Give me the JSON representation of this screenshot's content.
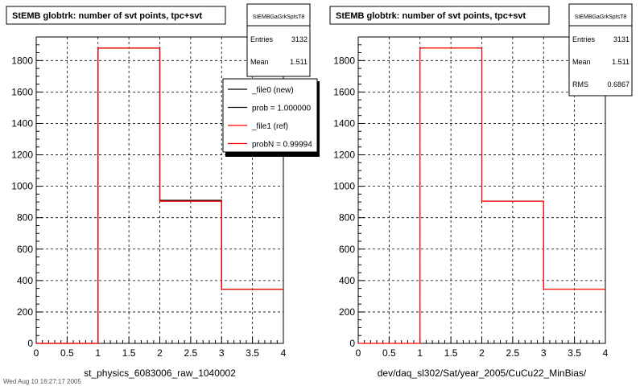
{
  "footer_text": "Wed Aug 10 16:27:17 2005",
  "chart_data": [
    {
      "type": "histogram",
      "title": "StEMB globtrk: number of svt points, tpc+svt",
      "xlabel": "st_physics_6083006_raw_1040002",
      "ylabel": "",
      "xlim": [
        0,
        4
      ],
      "ylim": [
        0,
        1950
      ],
      "grid": true,
      "x_ticks": [
        "0",
        "0.5",
        "1",
        "1.5",
        "2",
        "2.5",
        "3",
        "3.5",
        "4"
      ],
      "y_ticks": [
        "0",
        "200",
        "400",
        "600",
        "800",
        "1000",
        "1200",
        "1400",
        "1600",
        "1800"
      ],
      "bin_edges": [
        0,
        1,
        2,
        3,
        4
      ],
      "series": [
        {
          "name": "_file0 (new)",
          "color": "#000000",
          "values": [
            0,
            1880,
            910,
            345
          ]
        },
        {
          "name": "_file1 (ref)",
          "color": "#ff0000",
          "values": [
            0,
            1880,
            905,
            345
          ]
        }
      ],
      "stats": {
        "name": "StEMBGaGrkSptsT8",
        "rows": [
          {
            "label": "Entries",
            "value": "3132"
          },
          {
            "label": "Mean",
            "value": "1.511"
          }
        ]
      },
      "legend": {
        "position": "top-right",
        "entries": [
          {
            "label": "_file0 (new)",
            "color": "#000000"
          },
          {
            "label": "prob = 1.000000",
            "color": "#000000"
          },
          {
            "label": "_file1 (ref)",
            "color": "#ff0000"
          },
          {
            "label": "probN = 0.99994",
            "color": "#ff0000"
          }
        ]
      }
    },
    {
      "type": "histogram",
      "title": "StEMB globtrk: number of svt points, tpc+svt",
      "xlabel": "dev/daq_sl302/Sat/year_2005/CuCu22_MinBias/",
      "ylabel": "",
      "xlim": [
        0,
        4
      ],
      "ylim": [
        0,
        1950
      ],
      "grid": true,
      "x_ticks": [
        "0",
        "0.5",
        "1",
        "1.5",
        "2",
        "2.5",
        "3",
        "3.5",
        "4"
      ],
      "y_ticks": [
        "0",
        "200",
        "400",
        "600",
        "800",
        "1000",
        "1200",
        "1400",
        "1600",
        "1800"
      ],
      "bin_edges": [
        0,
        1,
        2,
        3,
        4
      ],
      "series": [
        {
          "name": "",
          "color": "#ff0000",
          "values": [
            0,
            1880,
            905,
            345
          ]
        }
      ],
      "stats": {
        "name": "StEMBGaGrkSptsT8",
        "rows": [
          {
            "label": "Entries",
            "value": "3131"
          },
          {
            "label": "Mean",
            "value": "1.511"
          },
          {
            "label": "RMS",
            "value": "0.6867"
          }
        ]
      }
    }
  ]
}
